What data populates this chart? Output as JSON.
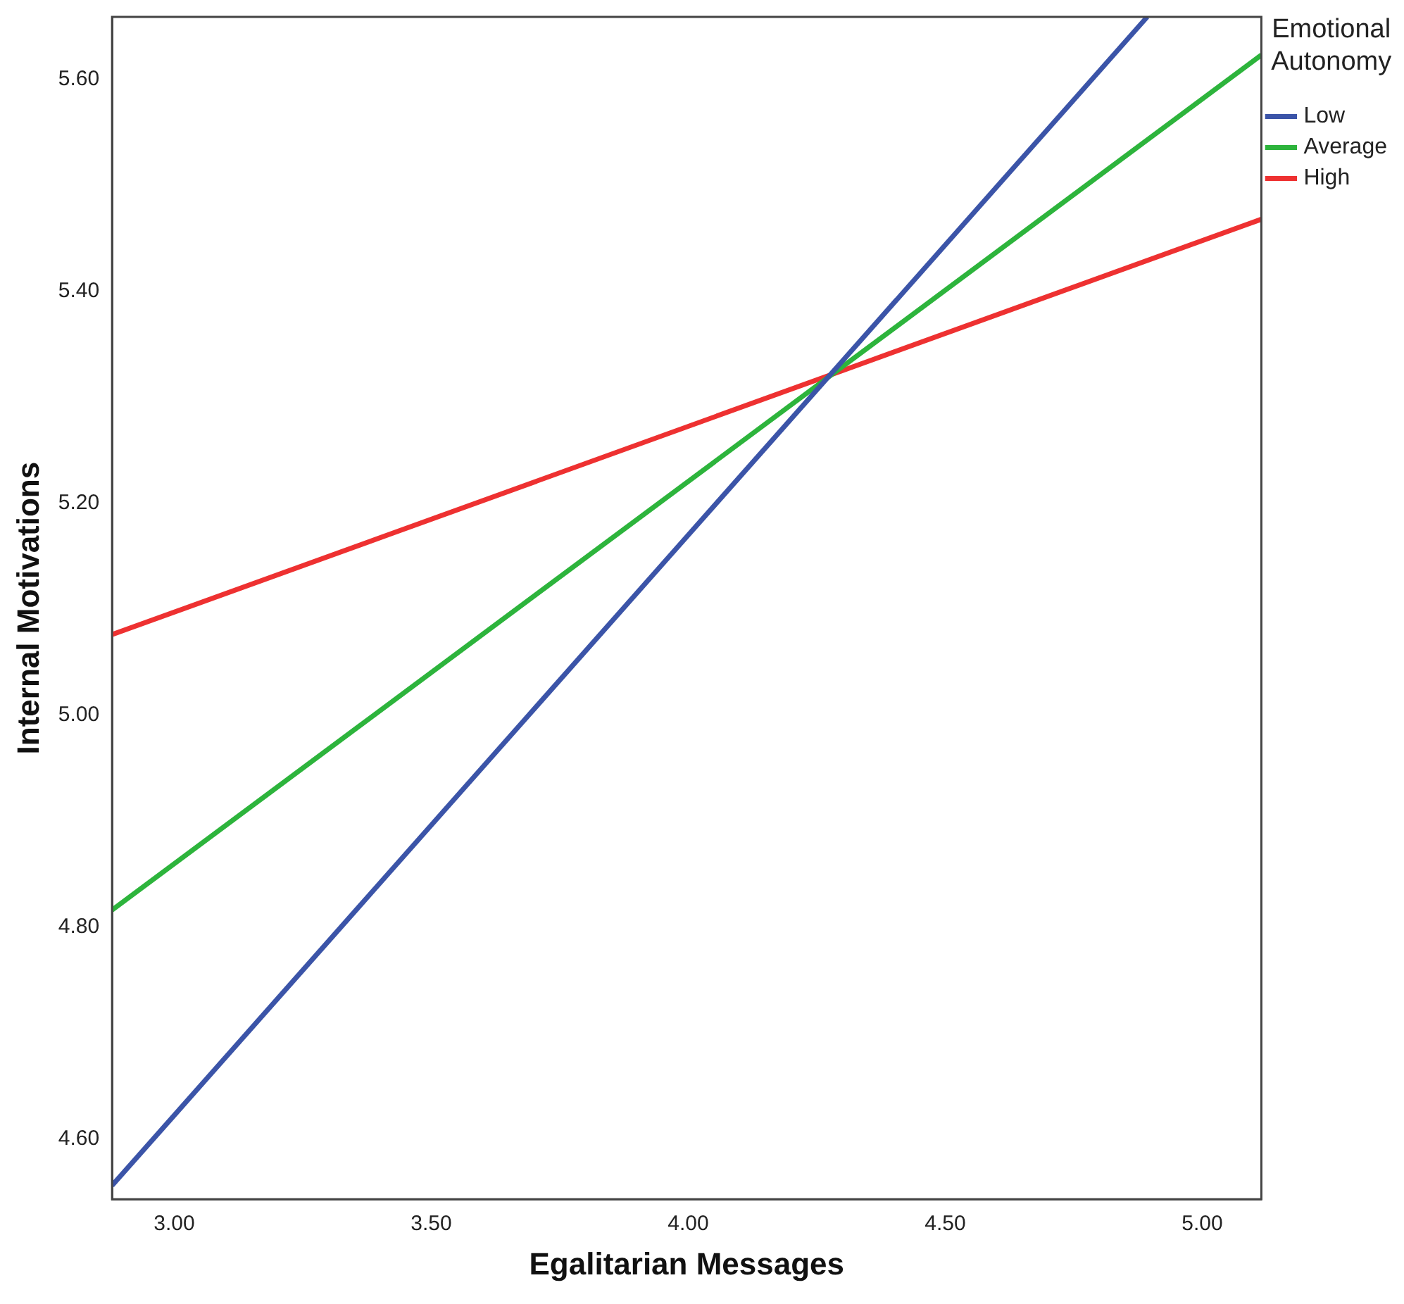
{
  "chart_data": {
    "type": "line",
    "xlabel": "Egalitarian Messages",
    "ylabel": "Internal Motivations",
    "legend_title": "Emotional Autonomy",
    "legend": "top right",
    "grid": false,
    "marker": "none",
    "line_style": "solid",
    "xlim": [
      2.879,
      5.115
    ],
    "ylim": [
      4.543,
      5.659
    ],
    "xticks": [
      {
        "value": 3,
        "label": "3.00"
      },
      {
        "value": 3.5,
        "label": "3.50"
      },
      {
        "value": 4,
        "label": "4.00"
      },
      {
        "value": 4.5,
        "label": "4.50"
      },
      {
        "value": 5,
        "label": "5.00"
      }
    ],
    "yticks": [
      {
        "value": 4.6,
        "label": "4.60"
      },
      {
        "value": 4.8,
        "label": "4.80"
      },
      {
        "value": 5,
        "label": "5.00"
      },
      {
        "value": 5.2,
        "label": "5.20"
      },
      {
        "value": 5.4,
        "label": "5.40"
      },
      {
        "value": 5.6,
        "label": "5.60"
      }
    ],
    "series": [
      {
        "name": "Low",
        "color": "#3b54a8",
        "x": [
          2.879,
          4.893
        ],
        "values": [
          4.556,
          5.659
        ]
      },
      {
        "name": "Average",
        "color": "#2db43c",
        "x": [
          2.879,
          5.115
        ],
        "values": [
          4.816,
          5.623
        ]
      },
      {
        "name": "High",
        "color": "#ee3131",
        "x": [
          2.879,
          5.115
        ],
        "values": [
          5.076,
          5.468
        ]
      }
    ]
  }
}
